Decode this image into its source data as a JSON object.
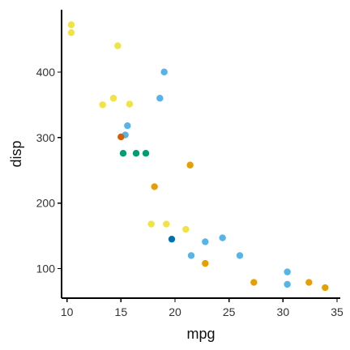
{
  "chart_data": {
    "type": "scatter",
    "xlabel": "mpg",
    "ylabel": "disp",
    "xlim": [
      9.5,
      35.3
    ],
    "ylim": [
      55,
      495
    ],
    "x_ticks": [
      10,
      15,
      20,
      25,
      30,
      35
    ],
    "x_tick_labels": [
      "10",
      "15",
      "20",
      "25",
      "30",
      "35"
    ],
    "y_ticks": [
      100,
      200,
      300,
      400
    ],
    "y_tick_labels": [
      "100",
      "200",
      "300",
      "400"
    ],
    "grid": false,
    "legend": "none",
    "series": [
      {
        "color": "#F0E442",
        "points": [
          [
            10.4,
            472
          ],
          [
            10.4,
            460
          ],
          [
            14.7,
            440
          ],
          [
            13.3,
            350
          ],
          [
            14.3,
            360
          ],
          [
            15.8,
            351
          ],
          [
            17.8,
            168
          ],
          [
            19.2,
            168
          ],
          [
            21.0,
            160
          ]
        ]
      },
      {
        "color": "#56B4E9",
        "points": [
          [
            19.0,
            400
          ],
          [
            18.6,
            360
          ],
          [
            15.6,
            318
          ],
          [
            15.4,
            304
          ],
          [
            22.8,
            141
          ],
          [
            24.4,
            147
          ],
          [
            21.5,
            120
          ],
          [
            26.0,
            120
          ],
          [
            30.4,
            95
          ],
          [
            30.4,
            76
          ]
        ]
      },
      {
        "color": "#D55E00",
        "points": [
          [
            15.0,
            301
          ]
        ]
      },
      {
        "color": "#009E73",
        "points": [
          [
            15.2,
            276
          ],
          [
            16.4,
            276
          ],
          [
            17.3,
            276
          ]
        ]
      },
      {
        "color": "#E69F00",
        "points": [
          [
            21.4,
            258
          ],
          [
            18.1,
            225
          ],
          [
            22.8,
            108
          ],
          [
            27.3,
            79
          ],
          [
            32.4,
            79
          ],
          [
            33.9,
            71
          ]
        ]
      },
      {
        "color": "#0072B2",
        "points": [
          [
            19.7,
            145
          ]
        ]
      }
    ]
  }
}
